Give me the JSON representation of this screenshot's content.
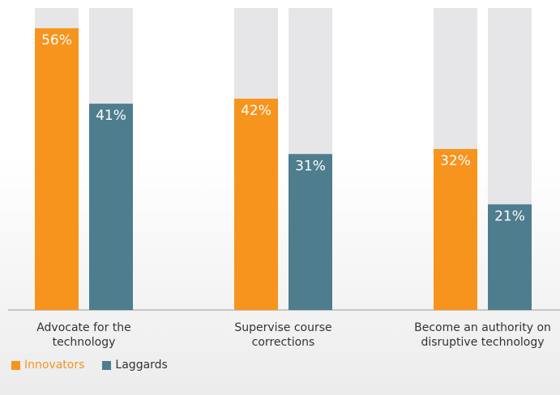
{
  "chart_data": {
    "type": "bar",
    "categories": [
      "Advocate for the technology",
      "Supervise course corrections",
      "Become an authority on disruptive technology"
    ],
    "series": [
      {
        "name": "Innovators",
        "color": "#f7941d",
        "values": [
          56,
          42,
          32
        ],
        "value_labels": [
          "56%",
          "42%",
          "32%"
        ]
      },
      {
        "name": "Laggards",
        "color": "#4e7d8e",
        "values": [
          41,
          31,
          21
        ],
        "value_labels": [
          "41%",
          "31%",
          "21%"
        ]
      }
    ],
    "ylim": [
      0,
      60
    ]
  }
}
